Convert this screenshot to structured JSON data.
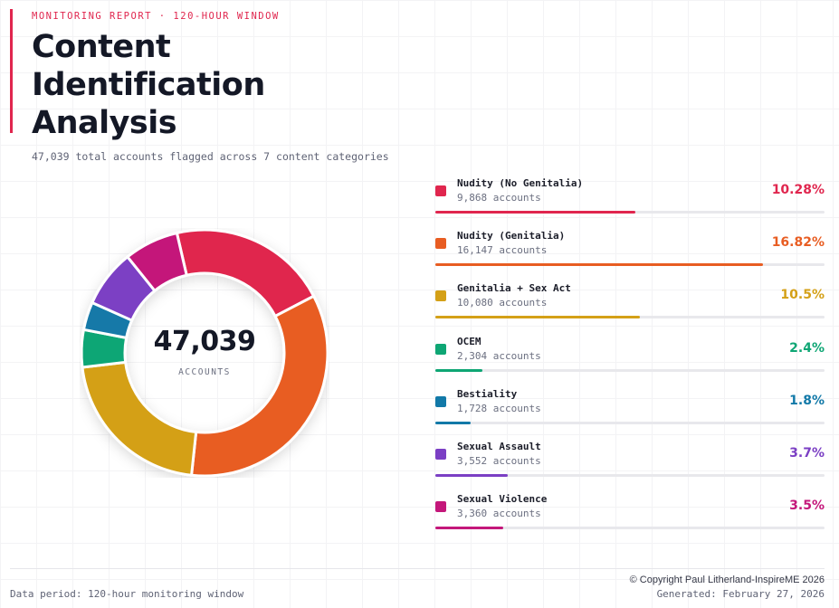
{
  "header": {
    "kicker": "MONITORING REPORT · 120-HOUR WINDOW",
    "title": "Content Identification Analysis",
    "subtitle": "47,039 total accounts flagged across 7 content categories"
  },
  "donut_center": {
    "value": "47,039",
    "unit": "ACCOUNTS"
  },
  "chart_data": {
    "type": "pie",
    "total": 47039,
    "slices": [
      {
        "name": "Nudity (No Genitalia)",
        "value": 9868,
        "count_label": "9,868 accounts",
        "pct_label": "10.28%",
        "pct": 10.28,
        "bar": 0.515,
        "color": "#e0264e"
      },
      {
        "name": "Nudity (Genitalia)",
        "value": 16147,
        "count_label": "16,147 accounts",
        "pct_label": "16.82%",
        "pct": 16.82,
        "bar": 0.843,
        "color": "#e85d22"
      },
      {
        "name": "Genitalia + Sex Act",
        "value": 10080,
        "count_label": "10,080 accounts",
        "pct_label": "10.5%",
        "pct": 10.5,
        "bar": 0.525,
        "color": "#d4a017"
      },
      {
        "name": "OCEM",
        "value": 2304,
        "count_label": "2,304 accounts",
        "pct_label": "2.4%",
        "pct": 2.4,
        "bar": 0.12,
        "color": "#0ea674"
      },
      {
        "name": "Bestiality",
        "value": 1728,
        "count_label": "1,728 accounts",
        "pct_label": "1.8%",
        "pct": 1.8,
        "bar": 0.09,
        "color": "#1279a8"
      },
      {
        "name": "Sexual Assault",
        "value": 3552,
        "count_label": "3,552 accounts",
        "pct_label": "3.7%",
        "pct": 3.7,
        "bar": 0.185,
        "color": "#7b3fc4"
      },
      {
        "name": "Sexual Violence",
        "value": 3360,
        "count_label": "3,360 accounts",
        "pct_label": "3.5%",
        "pct": 3.5,
        "bar": 0.175,
        "color": "#c4177a"
      }
    ]
  },
  "footer": {
    "period": "Data period: 120-hour monitoring window",
    "copyright": "© Copyright Paul Litherland-InspireME 2026",
    "generated": "Generated: February 27, 2026"
  }
}
